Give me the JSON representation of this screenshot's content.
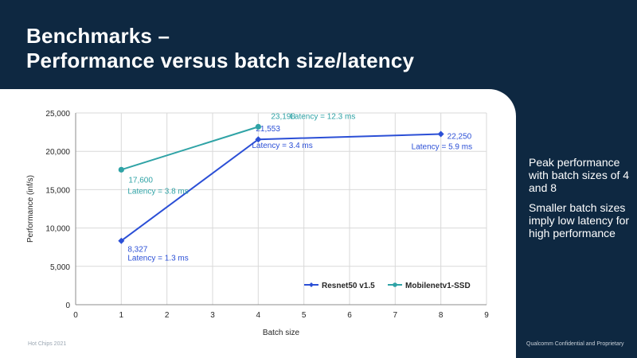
{
  "slide": {
    "title_line1": "Benchmarks –",
    "title_line2": "Performance versus batch size/latency",
    "sidebar": [
      "Peak performance with batch sizes of 4 and 8",
      "Smaller batch sizes imply low latency for high performance"
    ],
    "footer_left": "Hot Chips 2021",
    "footer_right": "Qualcomm Confidential and Proprietary",
    "colors": {
      "background": "#0e2841",
      "panel": "#ffffff"
    }
  },
  "chart_data": {
    "type": "line",
    "title": "",
    "xlabel": "Batch size",
    "ylabel": "Performance (inf/s)",
    "xlim": [
      0,
      9
    ],
    "ylim": [
      0,
      25000
    ],
    "xticks": [
      "0",
      "1",
      "2",
      "3",
      "4",
      "5",
      "6",
      "7",
      "8",
      "9"
    ],
    "yticks": [
      "0",
      "5,000",
      "10,000",
      "15,000",
      "20,000",
      "25,000"
    ],
    "grid": true,
    "legend_position": "bottom-right",
    "series": [
      {
        "name": "Resnet50 v1.5",
        "color": "#2b4fd6",
        "x": [
          1,
          4,
          8
        ],
        "y": [
          8327,
          21553,
          22250
        ],
        "labels": [
          "8,327",
          "21,553",
          "22,250"
        ],
        "latency": [
          "Latency = 1.3 ms",
          "Latency = 3.4 ms",
          "Latency = 5.9 ms"
        ]
      },
      {
        "name": "Mobilenetv1-SSD",
        "color": "#2fa3a6",
        "x": [
          1,
          4
        ],
        "y": [
          17600,
          23198
        ],
        "labels": [
          "17,600",
          "23,198"
        ],
        "latency": [
          "Latency = 3.8 ms",
          "Latency = 12.3 ms"
        ]
      }
    ]
  }
}
